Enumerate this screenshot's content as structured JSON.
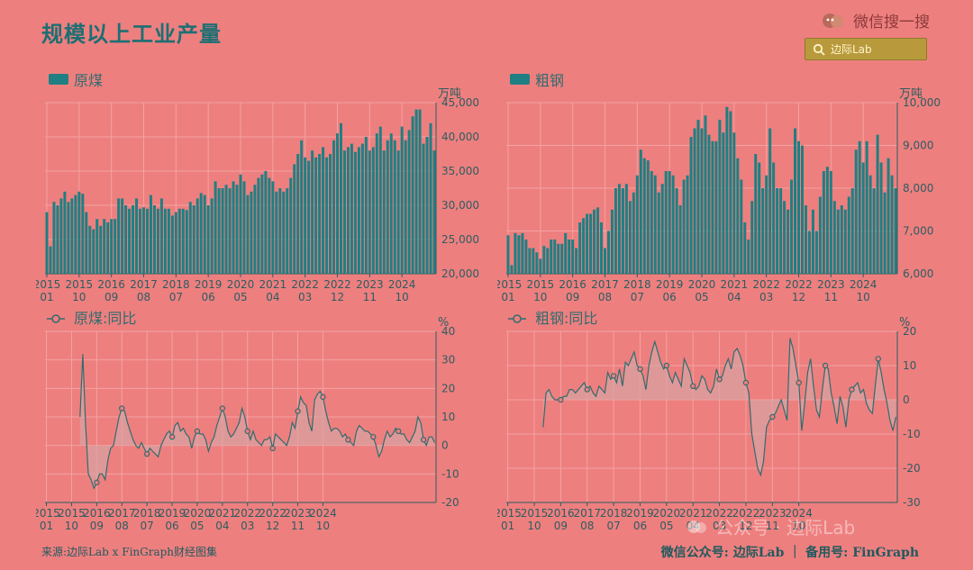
{
  "page": {
    "title": "规模以上工业产量",
    "wechat_label": "微信搜一搜",
    "search_text": "边际Lab",
    "footer_source": "来源:边际Lab x FinGraph财经图集",
    "footer_account": "微信公众号: 边际Lab ｜ 备用号: FinGraph",
    "watermark": "公众号 · 边际Lab"
  },
  "colors": {
    "bar": "#1f7f82",
    "line": "#2f6d6f",
    "fill": "#e98c8c",
    "grid": "#f3a3a3",
    "axis": "#2c5d60"
  },
  "x_ticks": [
    "2015\n01",
    "2015\n10",
    "2016\n09",
    "2017\n08",
    "2018\n07",
    "2019\n06",
    "2020\n05",
    "2021\n04",
    "2022\n03",
    "2022\n12",
    "2023\n11",
    "2024\n10"
  ],
  "chart_data": [
    {
      "type": "bar",
      "legend": "原煤",
      "unit": "万吨",
      "ylim": [
        20000,
        45000
      ],
      "yticks": [
        20000,
        25000,
        30000,
        35000,
        40000,
        45000
      ],
      "values": [
        29000,
        24000,
        30500,
        30000,
        31000,
        32000,
        30500,
        31000,
        31500,
        32000,
        31700,
        29000,
        27000,
        26500,
        28000,
        27000,
        28000,
        27500,
        28000,
        28000,
        31000,
        31000,
        30000,
        29500,
        30000,
        31000,
        29500,
        29700,
        29500,
        31500,
        30000,
        29500,
        31000,
        29500,
        29500,
        28500,
        29000,
        29500,
        29500,
        29300,
        30500,
        30000,
        31000,
        31800,
        31500,
        30000,
        31000,
        33500,
        32500,
        32500,
        33000,
        32500,
        33500,
        33000,
        34500,
        33500,
        31500,
        32000,
        33000,
        34000,
        34500,
        35000,
        34000,
        33500,
        32000,
        32500,
        32000,
        32500,
        34000,
        36000,
        37500,
        39500,
        37000,
        36500,
        38000,
        37000,
        37500,
        38500,
        37000,
        37500,
        39500,
        40500,
        42000,
        38000,
        38500,
        39000,
        37800,
        38500,
        39000,
        40000,
        38000,
        38500,
        40500,
        41500,
        38000,
        39500,
        40500,
        39500,
        38000,
        41500,
        39500,
        41000,
        43000,
        44000,
        44000,
        39000,
        40000,
        42000,
        38000
      ]
    },
    {
      "type": "bar",
      "legend": "粗钢",
      "unit": "万吨",
      "ylim": [
        6000,
        10000
      ],
      "yticks": [
        6000,
        7000,
        8000,
        9000,
        10000
      ],
      "values": [
        6900,
        6200,
        6950,
        6900,
        6950,
        6800,
        6600,
        6600,
        6500,
        6350,
        6650,
        6600,
        6800,
        6800,
        6700,
        6700,
        6950,
        6800,
        6800,
        6600,
        7200,
        7300,
        7400,
        7400,
        7500,
        7550,
        7200,
        6600,
        7000,
        7500,
        8000,
        8100,
        8000,
        8100,
        7700,
        7900,
        8300,
        8900,
        8700,
        8650,
        8400,
        8300,
        7900,
        8100,
        8400,
        8400,
        8300,
        8000,
        7600,
        8200,
        8300,
        9200,
        9400,
        9600,
        9400,
        9700,
        9250,
        9100,
        9100,
        9600,
        9300,
        9900,
        9800,
        9300,
        8700,
        8200,
        7200,
        6800,
        7700,
        8800,
        8600,
        8000,
        8300,
        9400,
        8600,
        8000,
        8000,
        7700,
        7500,
        8200,
        9400,
        9100,
        9000,
        7600,
        7000,
        7500,
        7000,
        7800,
        8400,
        8500,
        8400,
        7700,
        7500,
        7600,
        7500,
        7800,
        8000,
        8900,
        9100,
        8600,
        9100,
        8300,
        8000,
        9250,
        8600,
        7900,
        8700,
        8300,
        8000
      ]
    },
    {
      "type": "line",
      "legend": "原煤:同比",
      "unit": "%",
      "ylim": [
        -20,
        40
      ],
      "yticks": [
        -20,
        -10,
        0,
        10,
        20,
        30,
        40
      ],
      "values": [
        null,
        null,
        null,
        null,
        null,
        null,
        null,
        null,
        null,
        null,
        null,
        null,
        10,
        32,
        8,
        -10,
        -12,
        -15,
        -13,
        -10,
        -10,
        -12,
        -5,
        -1,
        0,
        5,
        10,
        13,
        12,
        8,
        5,
        2,
        0,
        -1,
        1,
        -1,
        -3,
        -1,
        -2,
        -3,
        -4,
        0,
        2,
        4,
        5,
        3,
        7,
        8,
        5,
        6,
        4,
        3,
        -1,
        3,
        5,
        4,
        4,
        2,
        -2,
        1,
        3,
        7,
        10,
        13,
        10,
        5,
        3,
        4,
        6,
        8,
        13,
        10,
        5,
        2,
        5,
        2,
        1,
        0,
        2,
        2,
        3,
        -1,
        4,
        3,
        2,
        1,
        0,
        3,
        8,
        6,
        12,
        17,
        15,
        14,
        8,
        5,
        16,
        18,
        19,
        17,
        12,
        8,
        5,
        6,
        6,
        5,
        3,
        4,
        2,
        1,
        0,
        5,
        7,
        6,
        5,
        5,
        4,
        3,
        0,
        -4,
        -2,
        2,
        5,
        3,
        4,
        6,
        5,
        4,
        4,
        2,
        1,
        3,
        5,
        10,
        8,
        2,
        0,
        3,
        3,
        1
      ]
    },
    {
      "type": "line",
      "legend": "粗钢:同比",
      "unit": "%",
      "ylim": [
        -30,
        20
      ],
      "yticks": [
        -30,
        -20,
        -10,
        0,
        10,
        20
      ],
      "values": [
        null,
        null,
        null,
        null,
        null,
        null,
        null,
        null,
        null,
        null,
        null,
        null,
        -8,
        2,
        3,
        1,
        0,
        0,
        0,
        1,
        1,
        3,
        3,
        2,
        3,
        4,
        5,
        3,
        4,
        2,
        1,
        4,
        3,
        2,
        8,
        6,
        7,
        5,
        9,
        4,
        11,
        10,
        12,
        14,
        10,
        9,
        7,
        3,
        10,
        14,
        17,
        14,
        11,
        9,
        10,
        7,
        5,
        8,
        6,
        4,
        12,
        10,
        8,
        4,
        3,
        4,
        7,
        6,
        3,
        2,
        4,
        9,
        6,
        7,
        10,
        12,
        9,
        14,
        15,
        13,
        10,
        5,
        2,
        -10,
        -15,
        -20,
        -22,
        -18,
        -8,
        -6,
        -5,
        -4,
        -2,
        0,
        -3,
        -6,
        18,
        15,
        10,
        5,
        -9,
        -1,
        8,
        12,
        4,
        -3,
        -5,
        3,
        10,
        9,
        2,
        -2,
        -7,
        1,
        -2,
        -8,
        0,
        3,
        4,
        5,
        2,
        3,
        -1,
        -3,
        -4,
        4,
        12,
        8,
        3,
        -1,
        -6,
        -9,
        -5
      ]
    }
  ]
}
